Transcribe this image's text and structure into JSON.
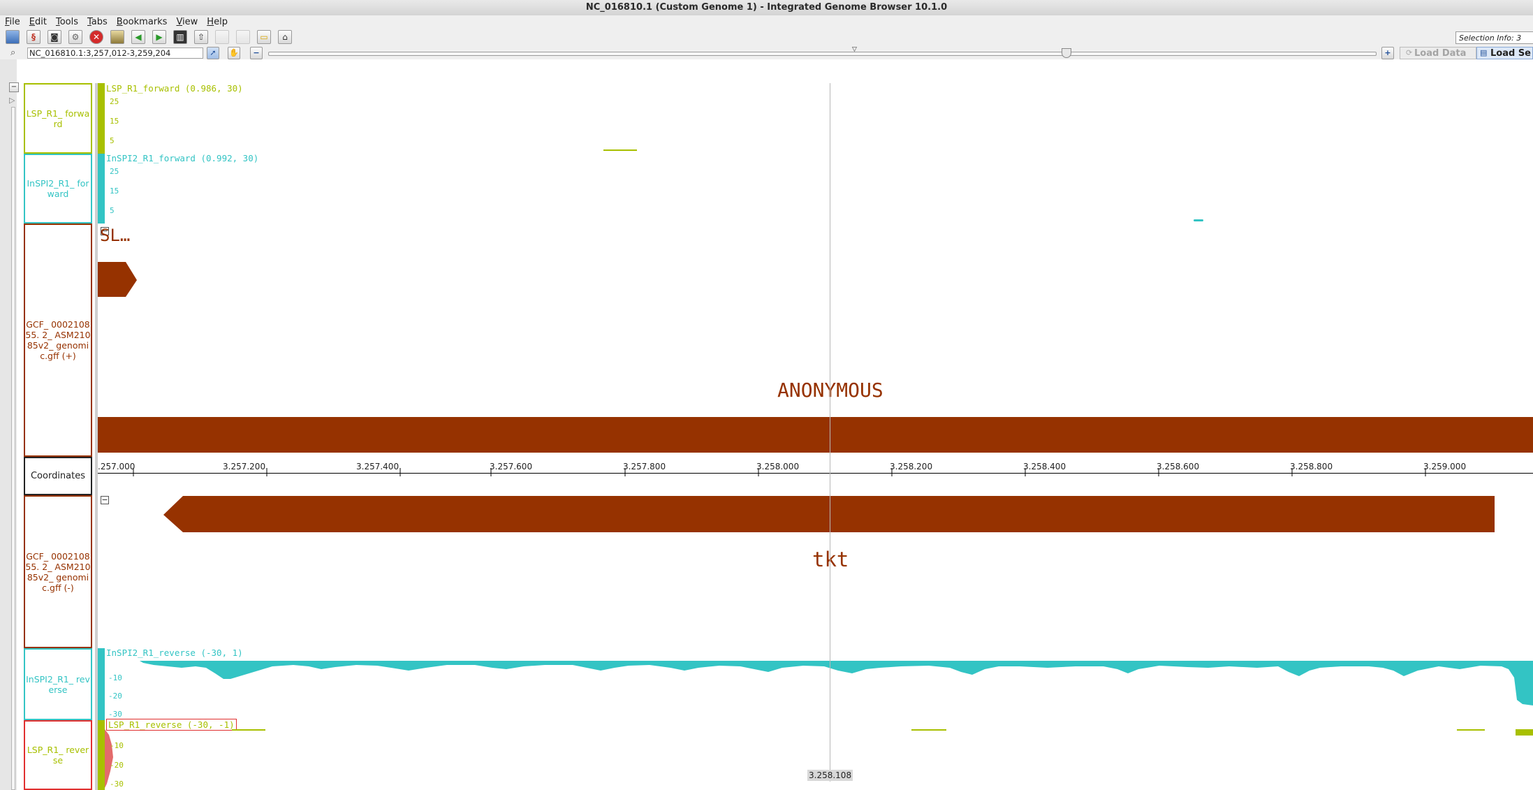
{
  "window": {
    "title": "NC_016810.1  (Custom Genome 1) - Integrated Genome Browser 10.1.0"
  },
  "menu": [
    "File",
    "Edit",
    "Tools",
    "Tabs",
    "Bookmarks",
    "View",
    "Help"
  ],
  "toolbar": {
    "icons": [
      "open-file-icon",
      "dna-helix-icon",
      "camera-icon",
      "settings-gear-icon",
      "stop-icon",
      "script-icon",
      "back-arrow-icon",
      "forward-arrow-icon",
      "filmstrip-icon",
      "upload-icon",
      "blank-icon",
      "blank-icon",
      "speech-bubble-icon",
      "home-icon"
    ],
    "selection_info": "Selection Info: 3"
  },
  "nav": {
    "location": "NC_016810.1:3,257,012-3,259,204",
    "load_data": "Load Data",
    "load_sequence": "Load Se"
  },
  "tracks": {
    "lsp_fwd": {
      "label": "LSP_R1_ forward",
      "header": "LSP_R1_forward (0.986, 30)",
      "ticks": [
        "25",
        "15",
        "5"
      ],
      "color": "#a8c000"
    },
    "inspi_fwd": {
      "label": "InSPI2_R1_ forward",
      "header": "InSPI2_R1_forward (0.992, 30)",
      "ticks": [
        "25",
        "15",
        "5"
      ],
      "color": "#33c4c4"
    },
    "gff_plus": {
      "label": "GCF_ 000210855. 2_ ASM21085v2_ genomic.gff (+)",
      "feature_a": "SL…",
      "feature_b": "ANONYMOUS",
      "color": "#963200"
    },
    "coordinates": {
      "label": "Coordinates",
      "ticks": [
        ".257.000",
        "3.257.200",
        "3.257.400",
        "3.257.600",
        "3.257.800",
        "3.258.000",
        "3.258.200",
        "3.258.400",
        "3.258.600",
        "3.258.800",
        "3.259.000"
      ]
    },
    "gff_minus": {
      "label": "GCF_ 000210855. 2_ ASM21085v2_ genomic.gff (-)",
      "feature": "tkt",
      "color": "#963200"
    },
    "inspi_rev": {
      "label": "InSPI2_R1_ reverse",
      "header": "InSPI2_R1_reverse (-30, 1)",
      "ticks": [
        "-10",
        "-20",
        "-30"
      ],
      "color": "#33c4c4"
    },
    "lsp_rev": {
      "label": "LSP_R1_ reverse",
      "header": "LSP_R1_reverse (-30, -1)",
      "ticks": [
        "-10",
        "-20",
        "-30"
      ],
      "color": "#a8c000"
    }
  },
  "cursor": {
    "position_label": "3.258.108"
  }
}
